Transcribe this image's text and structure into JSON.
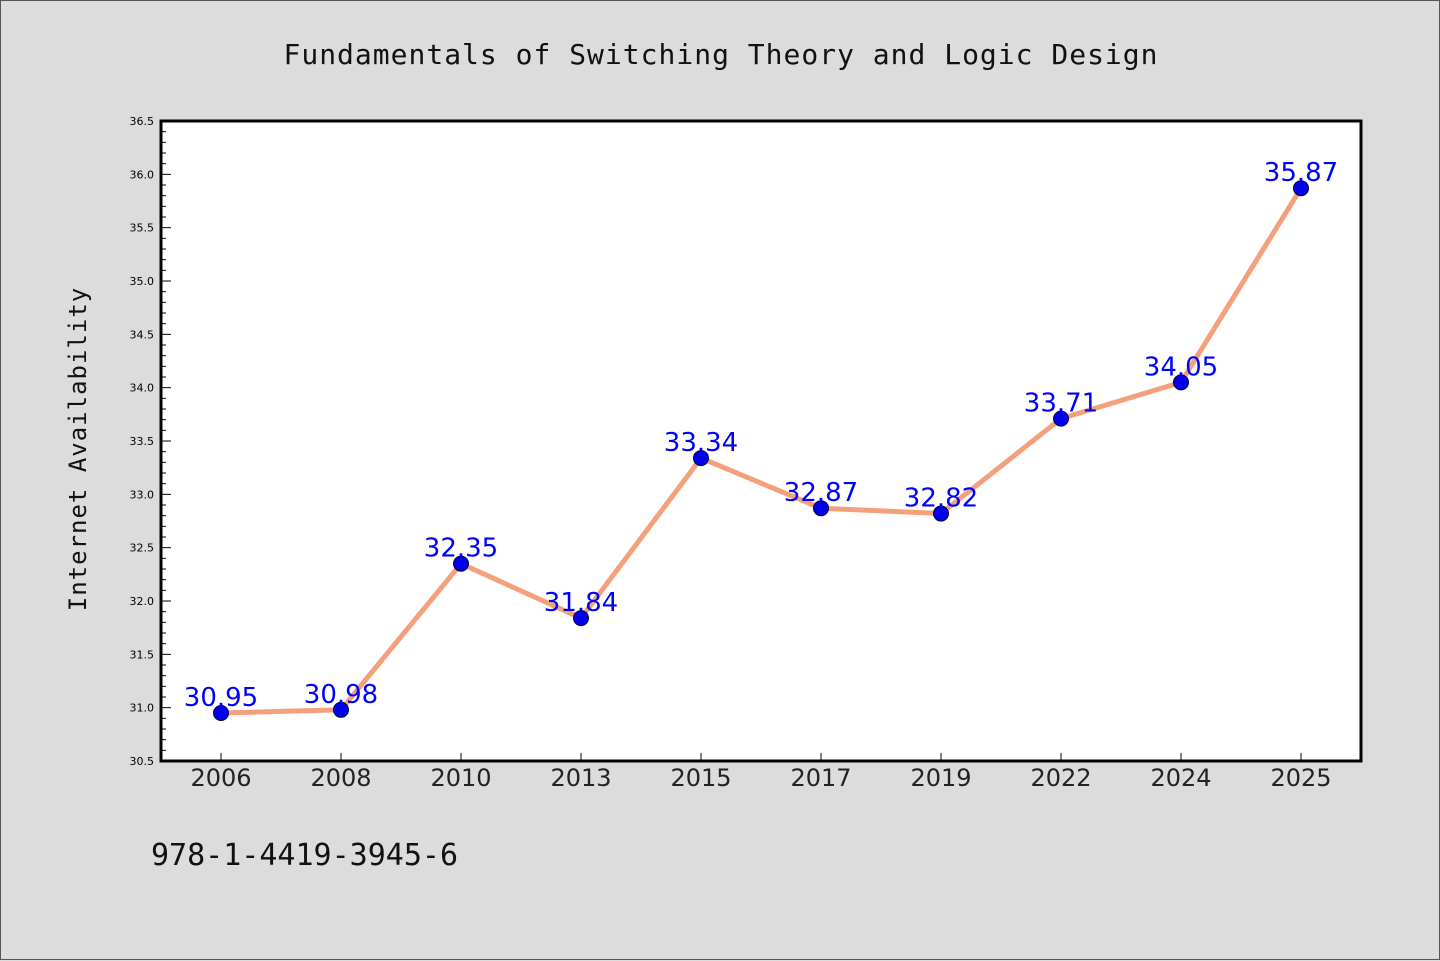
{
  "chart_data": {
    "type": "line",
    "title": "Fundamentals of Switching Theory and Logic Design",
    "xlabel": "",
    "ylabel": "Internet Availability",
    "categories": [
      "2006",
      "2008",
      "2010",
      "2013",
      "2015",
      "2017",
      "2019",
      "2022",
      "2024",
      "2025"
    ],
    "values": [
      30.95,
      30.98,
      32.35,
      31.84,
      33.34,
      32.87,
      32.82,
      33.71,
      34.05,
      35.87
    ],
    "data_labels": [
      "30.95",
      "30.98",
      "32.35",
      "31.84",
      "33.34",
      "32.87",
      "32.82",
      "33.71",
      "34.05",
      "35.87"
    ],
    "ylim": [
      30.5,
      36.5
    ],
    "yticks": [
      "30.5",
      "31.0",
      "31.5",
      "32.0",
      "32.5",
      "33.0",
      "33.5",
      "34.0",
      "34.5",
      "35.0",
      "35.5",
      "36.0",
      "36.5"
    ],
    "grid": false,
    "line_color": "#f4a07c",
    "marker_color": "#0000ee",
    "label_color": "#0000ff"
  },
  "footer_text": "978-1-4419-3945-6"
}
